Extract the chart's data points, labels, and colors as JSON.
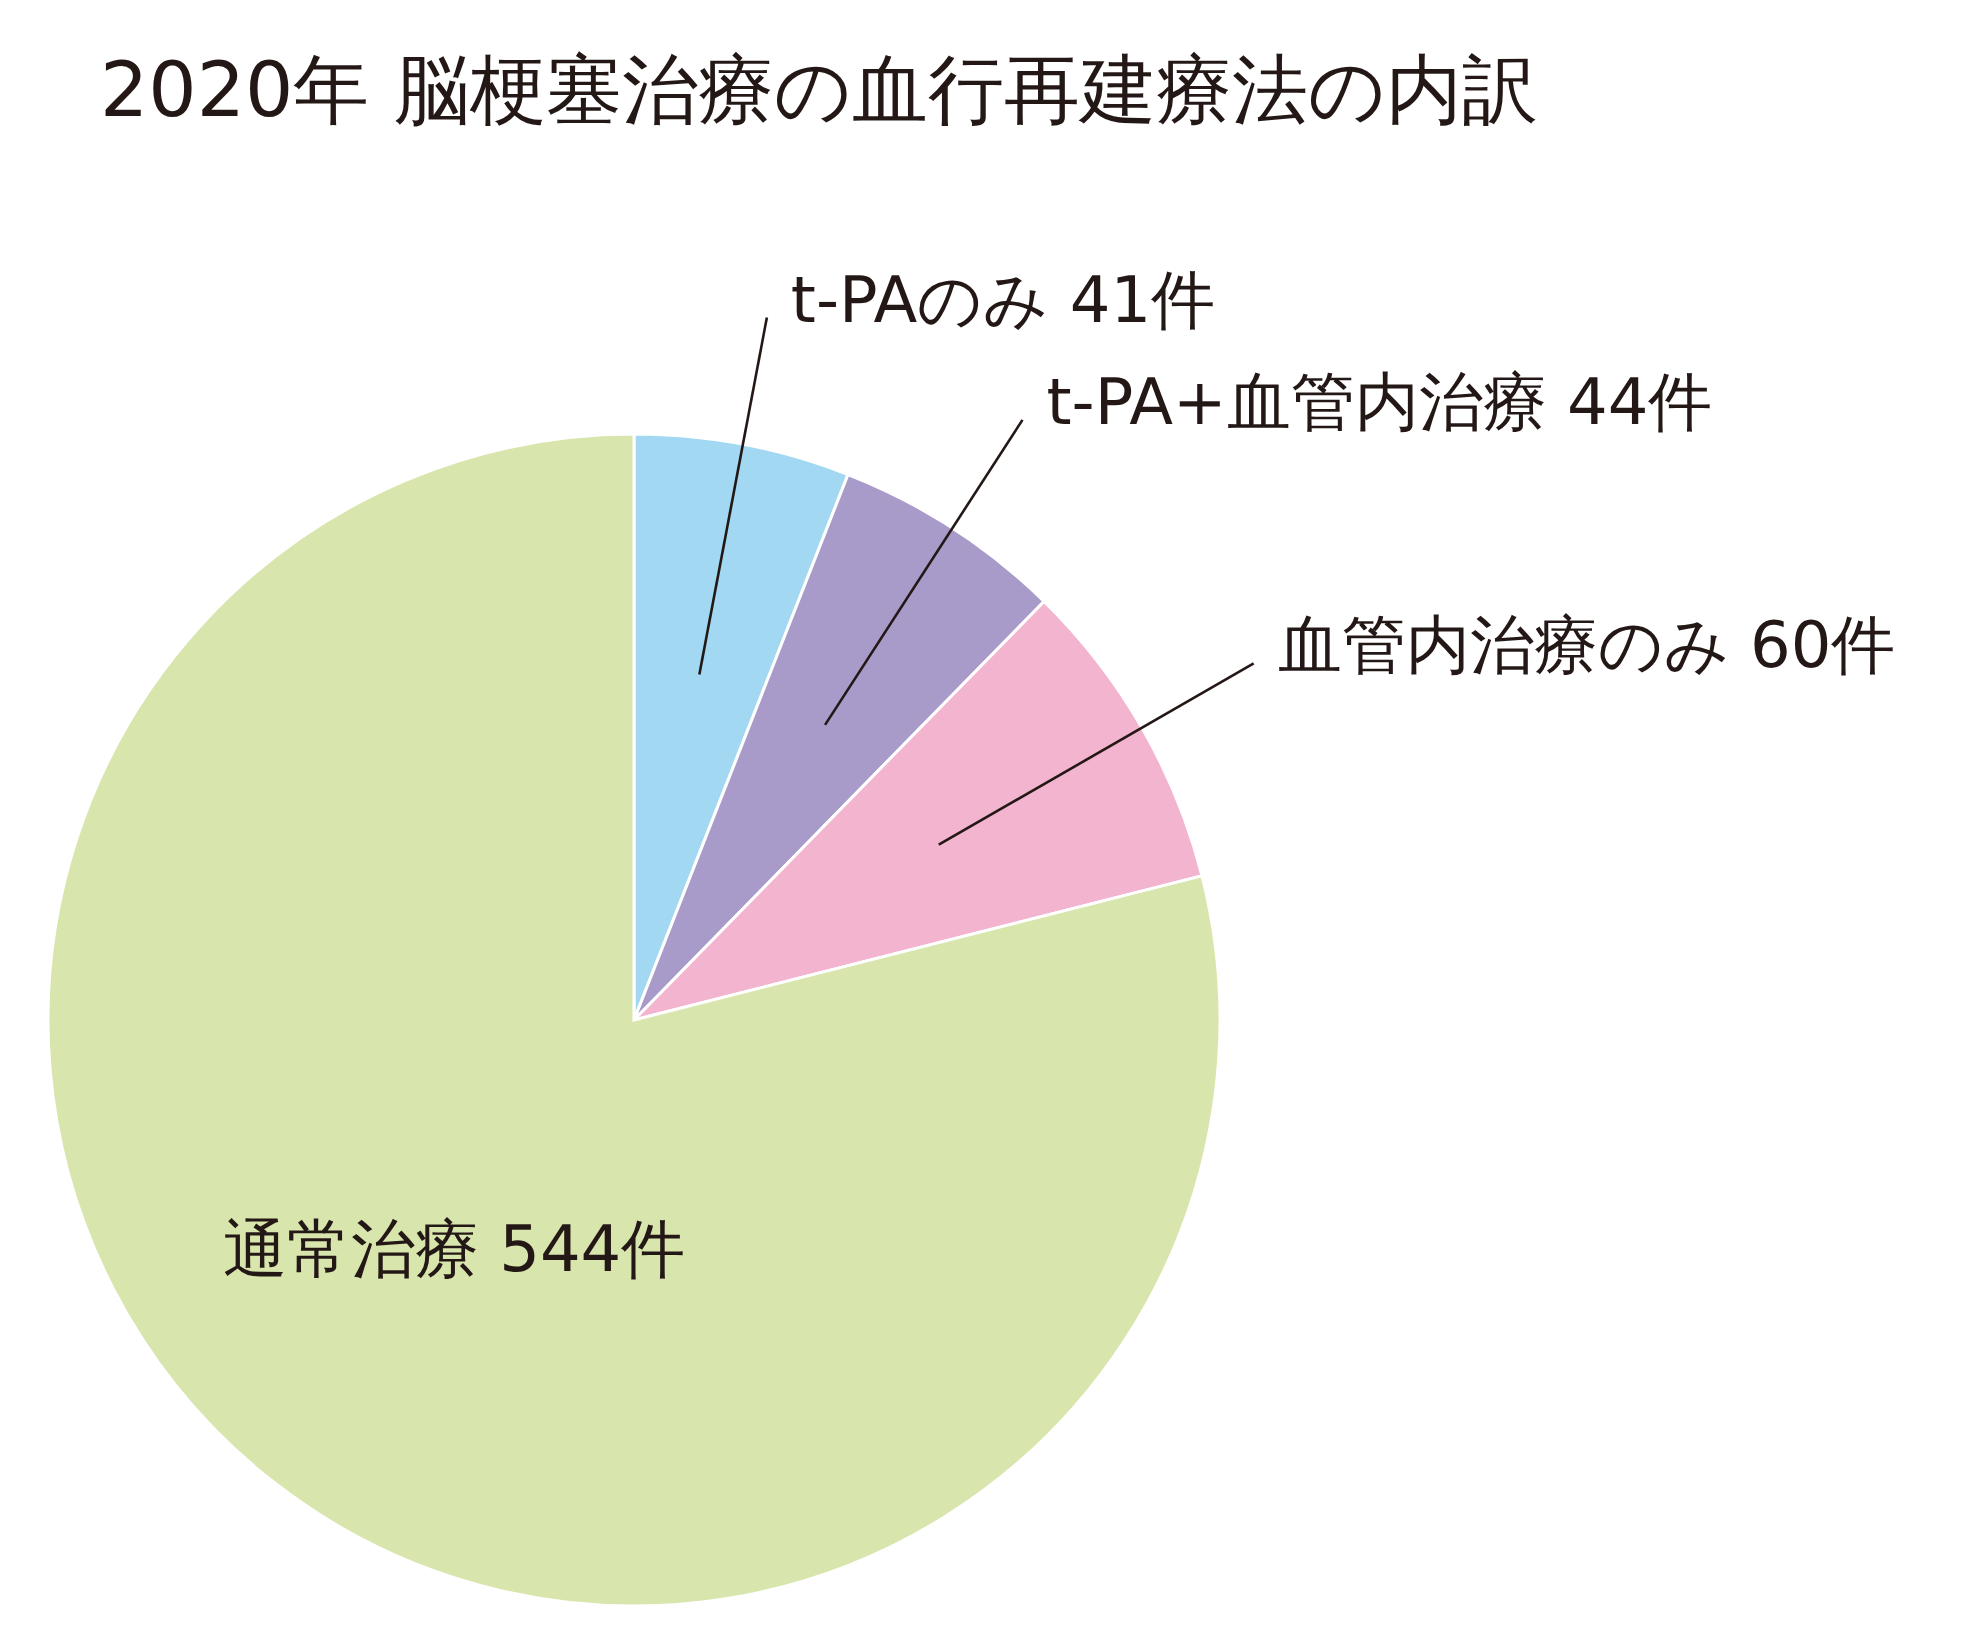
{
  "chart_data": {
    "type": "pie",
    "title": "2020年 脳梗塞治療の血行再建療法の内訳",
    "categories": [
      "t-PAのみ",
      "t-PA+血管内治療",
      "血管内治療のみ",
      "通常治療"
    ],
    "values": [
      41,
      44,
      60,
      544
    ],
    "value_labels": [
      "41件",
      "44件",
      "60件",
      "544件"
    ],
    "colors": [
      "#a2d8f2",
      "#a89bc9",
      "#f3b4cf",
      "#d8e6ad"
    ]
  }
}
